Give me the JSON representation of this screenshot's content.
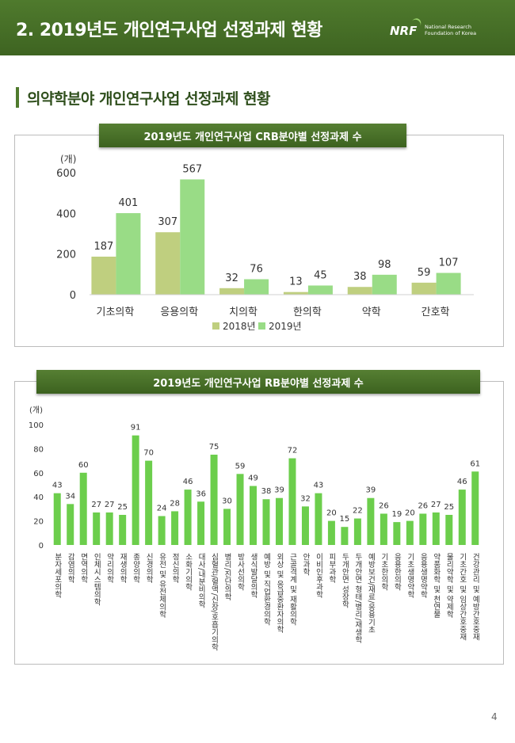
{
  "header": {
    "title": "2. 2019년도 개인연구사업 선정과제 현황"
  },
  "logo": {
    "mark": "NRF",
    "line1": "National Research",
    "line2": "Foundation of Korea"
  },
  "subtitle": "의약학분야 개인연구사업 선정과제 현황",
  "page_number": "4",
  "chart_data": [
    {
      "type": "bar",
      "title": "2019년도 개인연구사업 CRB분야별 선정과제 수",
      "ylabel": "(개)",
      "ylim": [
        0,
        600
      ],
      "yticks": [
        0,
        200,
        400,
        600
      ],
      "categories": [
        "기초의학",
        "응용의학",
        "치의학",
        "한의학",
        "약학",
        "간호학"
      ],
      "series": [
        {
          "name": "2018년",
          "values": [
            187,
            307,
            32,
            13,
            38,
            59
          ],
          "color": "#bfcf7f"
        },
        {
          "name": "2019년",
          "values": [
            401,
            567,
            76,
            45,
            98,
            107
          ],
          "color": "#99dc86"
        }
      ],
      "legend": "bottom-center"
    },
    {
      "type": "bar",
      "title": "2019년도 개인연구사업  RB분야별 선정과제 수",
      "ylabel": "(개)",
      "ylim": [
        0,
        100
      ],
      "yticks": [
        0,
        20,
        40,
        60,
        80,
        100
      ],
      "categories": [
        "분자세포의학",
        "감염의학",
        "면역의학",
        "인체시스템의학",
        "약리의학",
        "재생의학",
        "종양의학",
        "신경의학",
        "유전 및 유전체의학",
        "정신의학",
        "소화기의학",
        "대사/내분비의학",
        "심혈관/혈액/신장/호흡기의학",
        "병리/진단의학",
        "방사선의학",
        "생식발달의학",
        "예방 및 직업환경의학",
        "외상 및 응급중환자의학",
        "근골격계 및 재활의학",
        "안과학",
        "이비인후과학",
        "피부과학",
        "두개안면 성장학",
        "두개안면 형태/병리/재생학",
        "예방보건/재료/응용기초",
        "기초한의학",
        "응용한의학",
        "기초생명약학",
        "응용생명약학",
        "약품화학 및 천연물",
        "물리약학 및 약제학",
        "기초간호 및 임상간호중재",
        "건강관리 및 예방간호중재"
      ],
      "values": [
        43,
        34,
        60,
        27,
        27,
        25,
        91,
        70,
        24,
        28,
        46,
        36,
        75,
        30,
        59,
        49,
        38,
        39,
        72,
        32,
        43,
        20,
        15,
        22,
        39,
        26,
        19,
        20,
        26,
        27,
        25,
        46,
        61
      ],
      "color": "#6cce4c"
    }
  ]
}
